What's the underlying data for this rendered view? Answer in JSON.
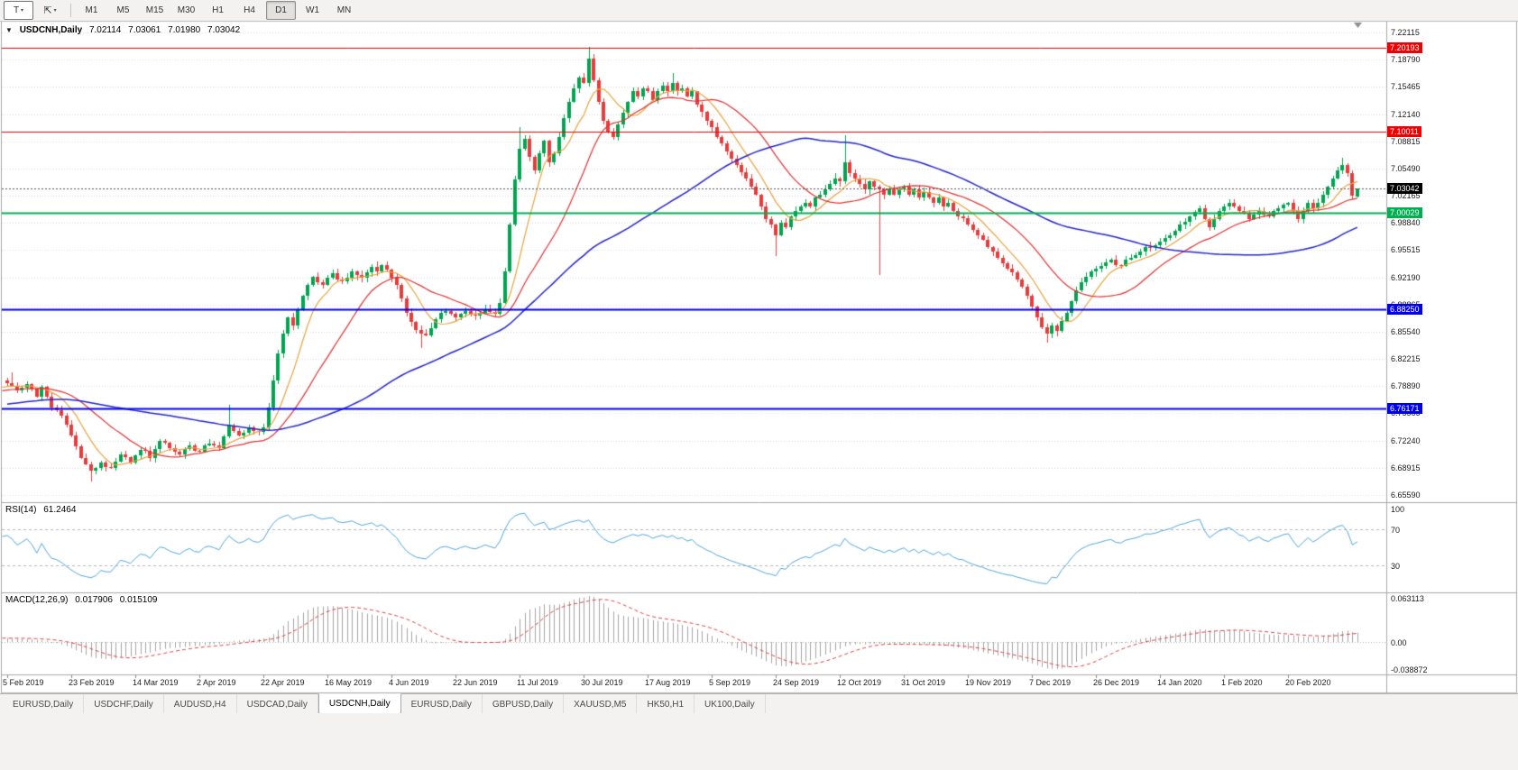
{
  "toolbar": {
    "chart_type_label": "T",
    "timeframes": [
      "M1",
      "M5",
      "M15",
      "M30",
      "H1",
      "H4",
      "D1",
      "W1",
      "MN"
    ],
    "active_timeframe": "D1"
  },
  "chart": {
    "symbol_title": "USDCNH,Daily",
    "ohlc": {
      "open": "7.02114",
      "high": "7.03061",
      "low": "7.01980",
      "close": "7.03042"
    },
    "colors": {
      "bull": "#00a551",
      "bear": "#e83c3c",
      "ma_fast": "#e8a33d",
      "ma_mid": "#e03030",
      "ma_slow": "#2424cc",
      "grid": "#dcdcdc",
      "frame": "#a7a7a7",
      "background": "#ffffff",
      "axis_text": "#1c1c1c"
    },
    "y_axis": {
      "ticks": [
        "7.22115",
        "7.18790",
        "7.15465",
        "7.12140",
        "7.08815",
        "7.05490",
        "7.02165",
        "6.98840",
        "6.95515",
        "6.92190",
        "6.88865",
        "6.85540",
        "6.82215",
        "6.78890",
        "6.75565",
        "6.72240",
        "6.68915",
        "6.65590"
      ]
    },
    "x_axis": {
      "labels": [
        "5 Feb 2019",
        "23 Feb 2019",
        "14 Mar 2019",
        "2 Apr 2019",
        "22 Apr 2019",
        "16 May 2019",
        "4 Jun 2019",
        "22 Jun 2019",
        "11 Jul 2019",
        "30 Jul 2019",
        "17 Aug 2019",
        "5 Sep 2019",
        "24 Sep 2019",
        "12 Oct 2019",
        "31 Oct 2019",
        "19 Nov 2019",
        "7 Dec 2019",
        "26 Dec 2019",
        "14 Jan 2020",
        "1 Feb 2020",
        "20 Feb 2020"
      ]
    },
    "levels": [
      {
        "name": "resistance-upper",
        "value": "7.20193",
        "color": "#ee0000",
        "width": 1,
        "style": "solid"
      },
      {
        "name": "resistance-mid",
        "value": "7.10011",
        "color": "#ee0000",
        "width": 1,
        "style": "solid"
      },
      {
        "name": "current-price",
        "value": "7.03042",
        "color": "#000000",
        "width": 1,
        "style": "current"
      },
      {
        "name": "support-green",
        "value": "7.00029",
        "color": "#00b050",
        "width": 2,
        "style": "solid"
      },
      {
        "name": "support-blue-upper",
        "value": "6.88250",
        "color": "#0000ee",
        "width": 2,
        "style": "solid"
      },
      {
        "name": "support-blue-lower",
        "value": "6.76171",
        "color": "#0000ee",
        "width": 2,
        "style": "solid"
      }
    ]
  },
  "rsi_panel": {
    "label": "RSI(14)",
    "value": "61.2464",
    "axis_labels": [
      "100",
      "70",
      "30"
    ],
    "axis_values": [
      100,
      70,
      30
    ],
    "dashed_levels": [
      70,
      30
    ],
    "line_color": "#4da6d9"
  },
  "macd_panel": {
    "label": "MACD(12,26,9)",
    "value_main": "0.017906",
    "value_signal": "0.015109",
    "axis_labels": [
      "0.063113",
      "0.00",
      "-0.038872"
    ],
    "axis_values": [
      0.063113,
      0,
      -0.038872
    ],
    "histogram_color": "#a3a3a3",
    "signal_color": "#d94040"
  },
  "tabs": {
    "items": [
      "EURUSD,Daily",
      "USDCHF,Daily",
      "AUDUSD,H4",
      "USDCAD,Daily",
      "USDCNH,Daily",
      "EURUSD,Daily",
      "GBPUSD,Daily",
      "XAUUSD,M5",
      "HK50,H1",
      "UK100,Daily"
    ],
    "active_index": 4
  },
  "chart_data": {
    "type": "candlestick",
    "symbol": "USDCNH",
    "period": "Daily",
    "visible_bars": 275,
    "price_min": 6.6559,
    "price_max": 7.22115,
    "current_price": 7.03042,
    "close_path_anchors": [
      [
        0,
        6.792
      ],
      [
        2,
        6.784
      ],
      [
        4,
        6.791
      ],
      [
        6,
        6.776
      ],
      [
        7,
        6.788
      ],
      [
        9,
        6.763
      ],
      [
        11,
        6.753
      ],
      [
        13,
        6.729
      ],
      [
        15,
        6.701
      ],
      [
        17,
        6.686
      ],
      [
        19,
        6.696
      ],
      [
        21,
        6.689
      ],
      [
        23,
        6.706
      ],
      [
        25,
        6.696
      ],
      [
        27,
        6.711
      ],
      [
        29,
        6.701
      ],
      [
        31,
        6.722
      ],
      [
        33,
        6.713
      ],
      [
        35,
        6.706
      ],
      [
        37,
        6.716
      ],
      [
        39,
        6.709
      ],
      [
        41,
        6.719
      ],
      [
        43,
        6.713
      ],
      [
        45,
        6.741
      ],
      [
        47,
        6.729
      ],
      [
        49,
        6.739
      ],
      [
        51,
        6.733
      ],
      [
        52,
        6.739
      ],
      [
        53,
        6.763
      ],
      [
        54,
        6.796
      ],
      [
        55,
        6.829
      ],
      [
        56,
        6.853
      ],
      [
        57,
        6.873
      ],
      [
        58,
        6.863
      ],
      [
        59,
        6.883
      ],
      [
        60,
        6.899
      ],
      [
        61,
        6.913
      ],
      [
        62,
        6.923
      ],
      [
        64,
        6.913
      ],
      [
        66,
        6.927
      ],
      [
        68,
        6.917
      ],
      [
        70,
        6.929
      ],
      [
        72,
        6.921
      ],
      [
        74,
        6.935
      ],
      [
        75,
        6.929
      ],
      [
        76,
        6.937
      ],
      [
        77,
        6.931
      ],
      [
        79,
        6.913
      ],
      [
        81,
        6.879
      ],
      [
        83,
        6.857
      ],
      [
        85,
        6.851
      ],
      [
        87,
        6.871
      ],
      [
        89,
        6.881
      ],
      [
        91,
        6.873
      ],
      [
        93,
        6.881
      ],
      [
        95,
        6.875
      ],
      [
        97,
        6.883
      ],
      [
        99,
        6.877
      ],
      [
        100,
        6.891
      ],
      [
        101,
        6.929
      ],
      [
        102,
        6.986
      ],
      [
        103,
        7.041
      ],
      [
        104,
        7.079
      ],
      [
        105,
        7.091
      ],
      [
        106,
        7.069
      ],
      [
        107,
        7.053
      ],
      [
        108,
        7.073
      ],
      [
        109,
        7.089
      ],
      [
        110,
        7.063
      ],
      [
        111,
        7.073
      ],
      [
        112,
        7.093
      ],
      [
        113,
        7.116
      ],
      [
        114,
        7.136
      ],
      [
        115,
        7.153
      ],
      [
        116,
        7.166
      ],
      [
        117,
        7.159
      ],
      [
        118,
        7.189
      ],
      [
        119,
        7.163
      ],
      [
        120,
        7.136
      ],
      [
        121,
        7.113
      ],
      [
        122,
        7.099
      ],
      [
        123,
        7.093
      ],
      [
        124,
        7.109
      ],
      [
        125,
        7.123
      ],
      [
        126,
        7.136
      ],
      [
        127,
        7.149
      ],
      [
        128,
        7.143
      ],
      [
        129,
        7.153
      ],
      [
        130,
        7.149
      ],
      [
        131,
        7.139
      ],
      [
        132,
        7.149
      ],
      [
        133,
        7.156
      ],
      [
        134,
        7.149
      ],
      [
        135,
        7.159
      ],
      [
        136,
        7.149
      ],
      [
        137,
        7.153
      ],
      [
        138,
        7.143
      ],
      [
        139,
        7.149
      ],
      [
        140,
        7.133
      ],
      [
        142,
        7.113
      ],
      [
        144,
        7.093
      ],
      [
        146,
        7.076
      ],
      [
        148,
        7.059
      ],
      [
        150,
        7.043
      ],
      [
        151,
        7.033
      ],
      [
        152,
        7.023
      ],
      [
        153,
        7.009
      ],
      [
        154,
        6.993
      ],
      [
        155,
        6.986
      ],
      [
        156,
        6.973
      ],
      [
        157,
        6.989
      ],
      [
        158,
        6.983
      ],
      [
        159,
        6.996
      ],
      [
        160,
        7.003
      ],
      [
        161,
        7.009
      ],
      [
        162,
        7.013
      ],
      [
        163,
        7.009
      ],
      [
        164,
        7.019
      ],
      [
        165,
        7.023
      ],
      [
        166,
        7.029
      ],
      [
        167,
        7.036
      ],
      [
        168,
        7.043
      ],
      [
        169,
        7.039
      ],
      [
        170,
        7.063
      ],
      [
        171,
        7.049
      ],
      [
        172,
        7.043
      ],
      [
        173,
        7.036
      ],
      [
        174,
        7.029
      ],
      [
        175,
        7.039
      ],
      [
        176,
        7.033
      ],
      [
        177,
        7.029
      ],
      [
        178,
        7.023
      ],
      [
        179,
        7.029
      ],
      [
        180,
        7.023
      ],
      [
        181,
        7.029
      ],
      [
        182,
        7.033
      ],
      [
        183,
        7.023
      ],
      [
        184,
        7.029
      ],
      [
        185,
        7.019
      ],
      [
        186,
        7.026
      ],
      [
        187,
        7.019
      ],
      [
        188,
        7.013
      ],
      [
        189,
        7.019
      ],
      [
        190,
        7.009
      ],
      [
        191,
        7.013
      ],
      [
        192,
        7.003
      ],
      [
        193,
        6.996
      ],
      [
        195,
        6.986
      ],
      [
        197,
        6.973
      ],
      [
        199,
        6.959
      ],
      [
        201,
        6.946
      ],
      [
        203,
        6.933
      ],
      [
        205,
        6.919
      ],
      [
        207,
        6.899
      ],
      [
        208,
        6.886
      ],
      [
        209,
        6.873
      ],
      [
        210,
        6.861
      ],
      [
        211,
        6.853
      ],
      [
        212,
        6.863
      ],
      [
        213,
        6.856
      ],
      [
        214,
        6.869
      ],
      [
        215,
        6.879
      ],
      [
        216,
        6.893
      ],
      [
        217,
        6.906
      ],
      [
        218,
        6.916
      ],
      [
        219,
        6.923
      ],
      [
        220,
        6.929
      ],
      [
        222,
        6.936
      ],
      [
        224,
        6.943
      ],
      [
        226,
        6.936
      ],
      [
        228,
        6.946
      ],
      [
        230,
        6.953
      ],
      [
        232,
        6.959
      ],
      [
        234,
        6.966
      ],
      [
        236,
        6.973
      ],
      [
        238,
        6.986
      ],
      [
        240,
        6.996
      ],
      [
        242,
        7.006
      ],
      [
        243,
        6.993
      ],
      [
        244,
        6.983
      ],
      [
        245,
        6.993
      ],
      [
        246,
        7.003
      ],
      [
        248,
        7.013
      ],
      [
        250,
        7.003
      ],
      [
        252,
        6.993
      ],
      [
        254,
        7.003
      ],
      [
        256,
        6.996
      ],
      [
        258,
        7.006
      ],
      [
        260,
        7.013
      ],
      [
        261,
        7.003
      ],
      [
        262,
        6.993
      ],
      [
        263,
        7.003
      ],
      [
        264,
        7.013
      ],
      [
        265,
        7.006
      ],
      [
        266,
        7.013
      ],
      [
        267,
        7.023
      ],
      [
        268,
        7.033
      ],
      [
        269,
        7.043
      ],
      [
        270,
        7.053
      ],
      [
        271,
        7.059
      ],
      [
        272,
        7.049
      ],
      [
        273,
        7.0212
      ],
      [
        274,
        7.03042
      ]
    ],
    "wick_overrides": [
      [
        1,
        "high",
        6.806
      ],
      [
        17,
        "low",
        6.672
      ],
      [
        45,
        "high",
        6.766
      ],
      [
        84,
        "low",
        6.836
      ],
      [
        104,
        "high",
        7.106
      ],
      [
        118,
        "high",
        7.203
      ],
      [
        135,
        "high",
        7.172
      ],
      [
        156,
        "low",
        6.948
      ],
      [
        170,
        "high",
        7.095
      ],
      [
        177,
        "low",
        6.925
      ],
      [
        211,
        "low",
        6.842
      ],
      [
        271,
        "high",
        7.068
      ]
    ],
    "pre_history": {
      "bars": 60,
      "start": 6.742,
      "end": 6.791
    },
    "moving_averages": [
      {
        "type": "sma",
        "period": 8,
        "color_key": "ma_fast"
      },
      {
        "type": "sma",
        "period": 20,
        "color_key": "ma_mid"
      },
      {
        "type": "sma",
        "period": 60,
        "color_key": "ma_slow"
      }
    ],
    "rsi_period": 14,
    "macd_params": [
      12,
      26,
      9
    ]
  }
}
